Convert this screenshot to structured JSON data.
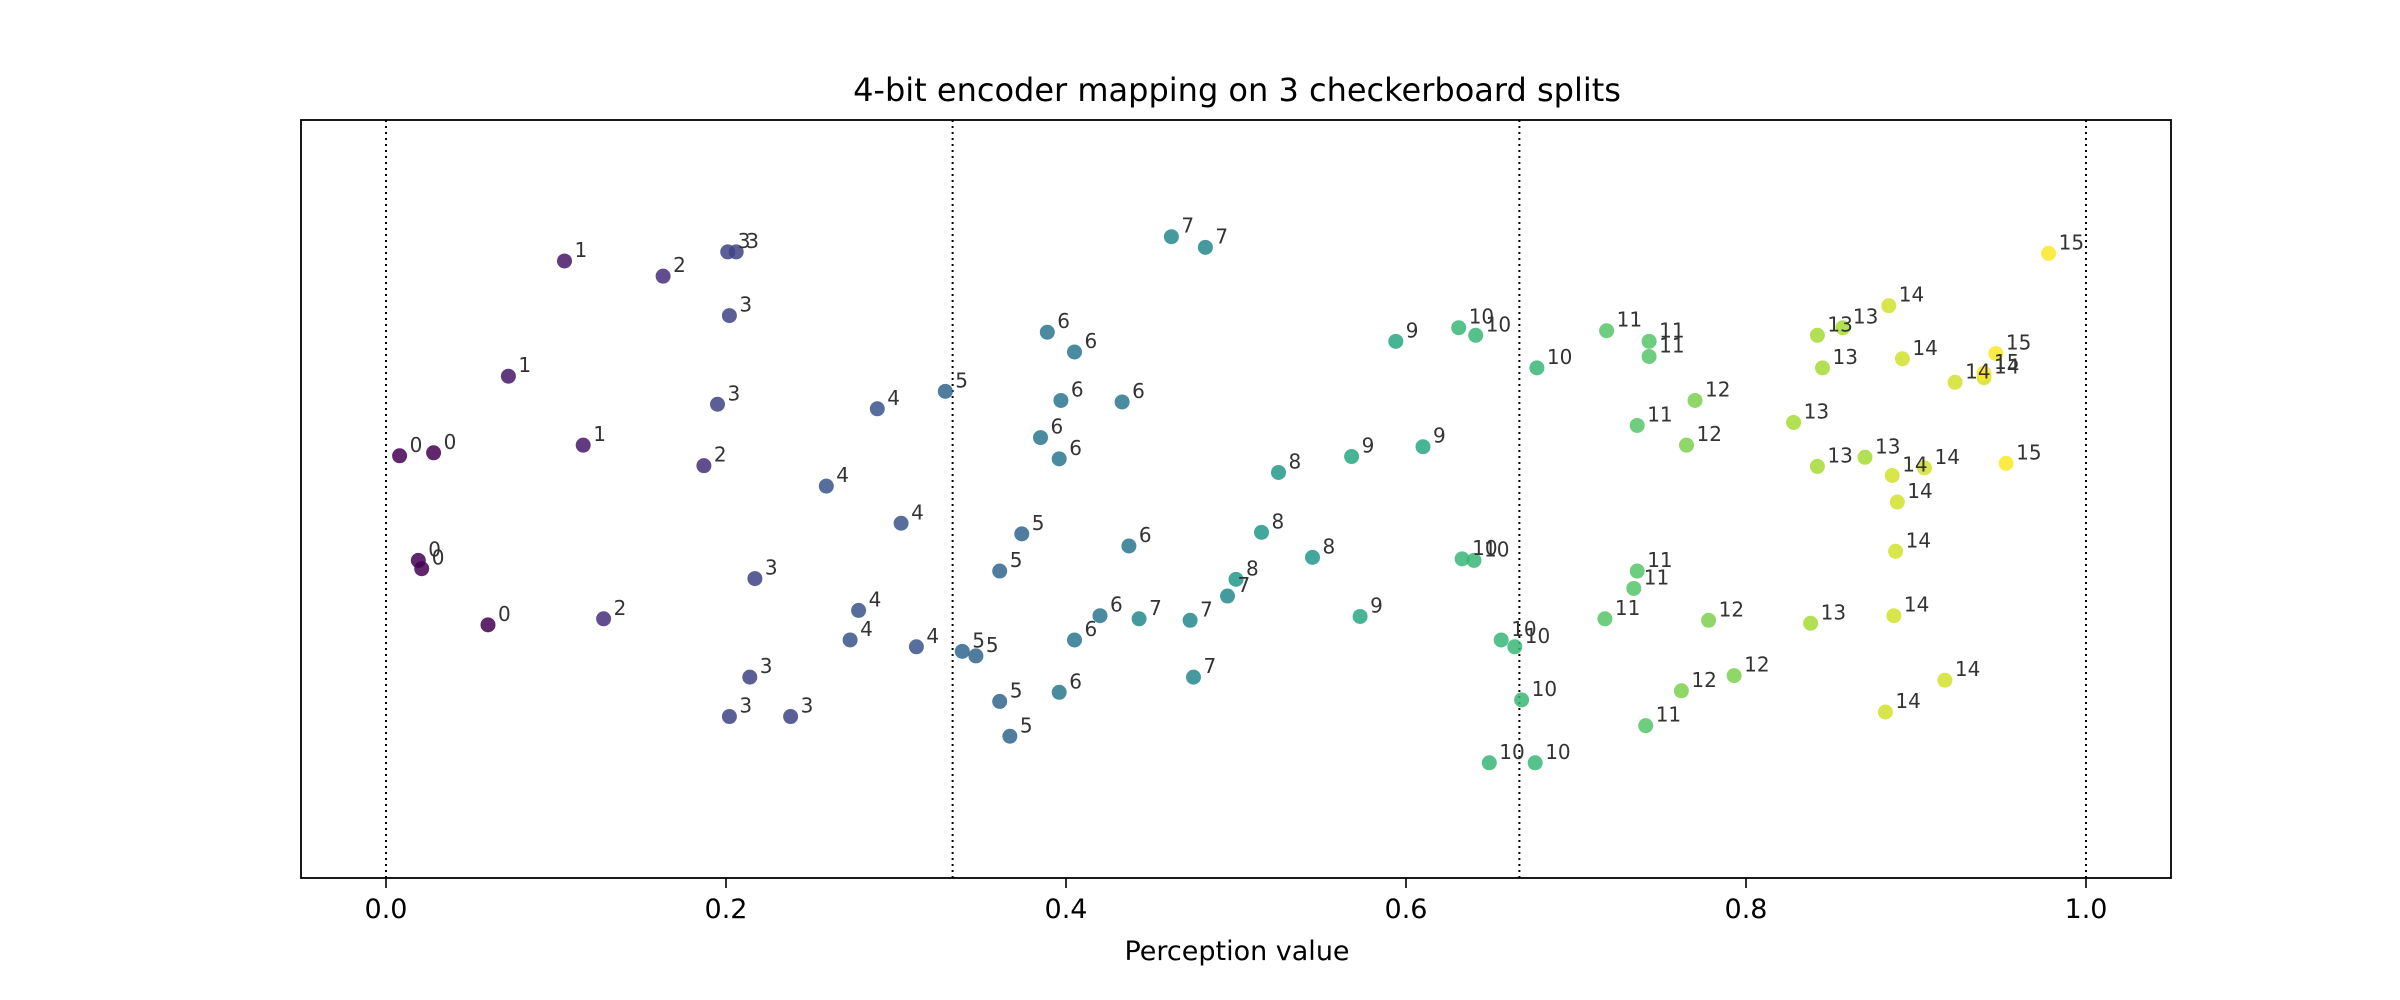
{
  "chart_data": {
    "type": "scatter",
    "title": "4-bit encoder mapping on 3 checkerboard splits",
    "xlabel": "Perception value",
    "ylabel": "",
    "xlim": [
      -0.05,
      1.05
    ],
    "ylim": [
      0,
      1
    ],
    "x_ticks": [
      0.0,
      0.2,
      0.4,
      0.6,
      0.8,
      1.0
    ],
    "x_tick_labels": [
      "0.0",
      "0.2",
      "0.4",
      "0.6",
      "0.8",
      "1.0"
    ],
    "y_ticks_shown": false,
    "grid": false,
    "legend": "none",
    "colormap": "viridis",
    "color_range": [
      0,
      15
    ],
    "split_boundaries": [
      0.0,
      0.3333,
      0.6667,
      1.0
    ],
    "points": [
      {
        "x": 0.105,
        "y": 0.814,
        "code": 1
      },
      {
        "x": 0.163,
        "y": 0.794,
        "code": 2
      },
      {
        "x": 0.201,
        "y": 0.826,
        "code": 3
      },
      {
        "x": 0.206,
        "y": 0.826,
        "code": 3
      },
      {
        "x": 0.202,
        "y": 0.742,
        "code": 3
      },
      {
        "x": 0.072,
        "y": 0.662,
        "code": 1
      },
      {
        "x": 0.195,
        "y": 0.625,
        "code": 3
      },
      {
        "x": 0.008,
        "y": 0.557,
        "code": 0
      },
      {
        "x": 0.028,
        "y": 0.561,
        "code": 0
      },
      {
        "x": 0.116,
        "y": 0.571,
        "code": 1
      },
      {
        "x": 0.187,
        "y": 0.544,
        "code": 2
      },
      {
        "x": 0.019,
        "y": 0.419,
        "code": 0
      },
      {
        "x": 0.021,
        "y": 0.408,
        "code": 0
      },
      {
        "x": 0.06,
        "y": 0.334,
        "code": 0
      },
      {
        "x": 0.128,
        "y": 0.342,
        "code": 2
      },
      {
        "x": 0.217,
        "y": 0.395,
        "code": 3
      },
      {
        "x": 0.214,
        "y": 0.265,
        "code": 3
      },
      {
        "x": 0.202,
        "y": 0.213,
        "code": 3
      },
      {
        "x": 0.238,
        "y": 0.213,
        "code": 3
      },
      {
        "x": 0.289,
        "y": 0.619,
        "code": 4
      },
      {
        "x": 0.259,
        "y": 0.517,
        "code": 4
      },
      {
        "x": 0.303,
        "y": 0.468,
        "code": 4
      },
      {
        "x": 0.278,
        "y": 0.353,
        "code": 4
      },
      {
        "x": 0.273,
        "y": 0.314,
        "code": 4
      },
      {
        "x": 0.312,
        "y": 0.305,
        "code": 4
      },
      {
        "x": 0.329,
        "y": 0.642,
        "code": 5
      },
      {
        "x": 0.374,
        "y": 0.454,
        "code": 5
      },
      {
        "x": 0.361,
        "y": 0.405,
        "code": 5
      },
      {
        "x": 0.339,
        "y": 0.299,
        "code": 5
      },
      {
        "x": 0.347,
        "y": 0.293,
        "code": 5
      },
      {
        "x": 0.361,
        "y": 0.233,
        "code": 5
      },
      {
        "x": 0.367,
        "y": 0.187,
        "code": 5
      },
      {
        "x": 0.389,
        "y": 0.72,
        "code": 6
      },
      {
        "x": 0.405,
        "y": 0.694,
        "code": 6
      },
      {
        "x": 0.397,
        "y": 0.63,
        "code": 6
      },
      {
        "x": 0.433,
        "y": 0.628,
        "code": 6
      },
      {
        "x": 0.385,
        "y": 0.581,
        "code": 6
      },
      {
        "x": 0.396,
        "y": 0.553,
        "code": 6
      },
      {
        "x": 0.437,
        "y": 0.438,
        "code": 6
      },
      {
        "x": 0.42,
        "y": 0.346,
        "code": 6
      },
      {
        "x": 0.405,
        "y": 0.314,
        "code": 6
      },
      {
        "x": 0.396,
        "y": 0.245,
        "code": 6
      },
      {
        "x": 0.462,
        "y": 0.846,
        "code": 7
      },
      {
        "x": 0.482,
        "y": 0.832,
        "code": 7
      },
      {
        "x": 0.443,
        "y": 0.342,
        "code": 7
      },
      {
        "x": 0.473,
        "y": 0.34,
        "code": 7
      },
      {
        "x": 0.495,
        "y": 0.372,
        "code": 7
      },
      {
        "x": 0.475,
        "y": 0.265,
        "code": 7
      },
      {
        "x": 0.525,
        "y": 0.535,
        "code": 8
      },
      {
        "x": 0.515,
        "y": 0.456,
        "code": 8
      },
      {
        "x": 0.5,
        "y": 0.394,
        "code": 8
      },
      {
        "x": 0.545,
        "y": 0.423,
        "code": 8
      },
      {
        "x": 0.594,
        "y": 0.708,
        "code": 9
      },
      {
        "x": 0.568,
        "y": 0.556,
        "code": 9
      },
      {
        "x": 0.61,
        "y": 0.569,
        "code": 9
      },
      {
        "x": 0.573,
        "y": 0.345,
        "code": 9
      },
      {
        "x": 0.631,
        "y": 0.726,
        "code": 10
      },
      {
        "x": 0.641,
        "y": 0.716,
        "code": 10
      },
      {
        "x": 0.677,
        "y": 0.673,
        "code": 10
      },
      {
        "x": 0.633,
        "y": 0.421,
        "code": 10
      },
      {
        "x": 0.64,
        "y": 0.419,
        "code": 10
      },
      {
        "x": 0.656,
        "y": 0.314,
        "code": 10
      },
      {
        "x": 0.664,
        "y": 0.305,
        "code": 10
      },
      {
        "x": 0.668,
        "y": 0.235,
        "code": 10
      },
      {
        "x": 0.649,
        "y": 0.152,
        "code": 10
      },
      {
        "x": 0.676,
        "y": 0.152,
        "code": 10
      },
      {
        "x": 0.718,
        "y": 0.722,
        "code": 11
      },
      {
        "x": 0.743,
        "y": 0.708,
        "code": 11
      },
      {
        "x": 0.743,
        "y": 0.688,
        "code": 11
      },
      {
        "x": 0.736,
        "y": 0.597,
        "code": 11
      },
      {
        "x": 0.736,
        "y": 0.405,
        "code": 11
      },
      {
        "x": 0.734,
        "y": 0.382,
        "code": 11
      },
      {
        "x": 0.717,
        "y": 0.342,
        "code": 11
      },
      {
        "x": 0.741,
        "y": 0.201,
        "code": 11
      },
      {
        "x": 0.77,
        "y": 0.63,
        "code": 12
      },
      {
        "x": 0.765,
        "y": 0.571,
        "code": 12
      },
      {
        "x": 0.778,
        "y": 0.34,
        "code": 12
      },
      {
        "x": 0.762,
        "y": 0.247,
        "code": 12
      },
      {
        "x": 0.793,
        "y": 0.267,
        "code": 12
      },
      {
        "x": 0.842,
        "y": 0.716,
        "code": 13
      },
      {
        "x": 0.857,
        "y": 0.726,
        "code": 13
      },
      {
        "x": 0.845,
        "y": 0.673,
        "code": 13
      },
      {
        "x": 0.828,
        "y": 0.601,
        "code": 13
      },
      {
        "x": 0.842,
        "y": 0.543,
        "code": 13
      },
      {
        "x": 0.87,
        "y": 0.555,
        "code": 13
      },
      {
        "x": 0.838,
        "y": 0.336,
        "code": 13
      },
      {
        "x": 0.884,
        "y": 0.755,
        "code": 14
      },
      {
        "x": 0.892,
        "y": 0.685,
        "code": 14
      },
      {
        "x": 0.923,
        "y": 0.654,
        "code": 14
      },
      {
        "x": 0.94,
        "y": 0.66,
        "code": 14
      },
      {
        "x": 0.886,
        "y": 0.531,
        "code": 14
      },
      {
        "x": 0.905,
        "y": 0.541,
        "code": 14
      },
      {
        "x": 0.889,
        "y": 0.496,
        "code": 14
      },
      {
        "x": 0.888,
        "y": 0.431,
        "code": 14
      },
      {
        "x": 0.887,
        "y": 0.346,
        "code": 14
      },
      {
        "x": 0.917,
        "y": 0.261,
        "code": 14
      },
      {
        "x": 0.882,
        "y": 0.219,
        "code": 14
      },
      {
        "x": 0.978,
        "y": 0.824,
        "code": 15
      },
      {
        "x": 0.947,
        "y": 0.692,
        "code": 15
      },
      {
        "x": 0.94,
        "y": 0.666,
        "code": 15
      },
      {
        "x": 0.953,
        "y": 0.547,
        "code": 15
      }
    ]
  }
}
